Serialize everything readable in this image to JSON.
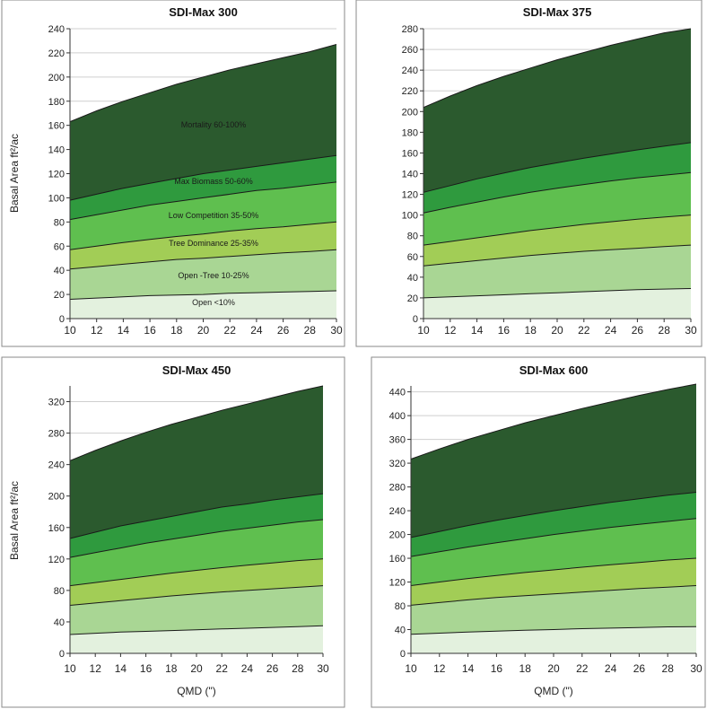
{
  "colors": {
    "bands": [
      "#e3f1de",
      "#a9d694",
      "#a2cd56",
      "#5fbf4f",
      "#2f9a3e",
      "#2b5a2e"
    ],
    "outline": "#1a1a1a",
    "frame": "#8a8a8a"
  },
  "chart_data": [
    {
      "type": "area",
      "title": "SDI-Max 300",
      "xlabel": "",
      "ylabel": "Basal Area ft²/ac",
      "x": [
        10,
        12,
        14,
        16,
        18,
        20,
        22,
        24,
        26,
        28,
        30
      ],
      "xlim": [
        10,
        30
      ],
      "ylim": [
        0,
        240
      ],
      "yticks": [
        0,
        20,
        40,
        60,
        80,
        100,
        120,
        140,
        160,
        180,
        200,
        220,
        240
      ],
      "grid": true,
      "series": [
        {
          "name": "Open <10%",
          "values": [
            16,
            17,
            18,
            19,
            19.5,
            20,
            21,
            21.5,
            22,
            22.5,
            23
          ]
        },
        {
          "name": "Open -Tree 10-25%",
          "values": [
            41,
            43,
            45,
            47,
            49,
            50,
            51.5,
            53,
            54.5,
            55.5,
            57
          ]
        },
        {
          "name": "Tree Dominance 25-35%",
          "values": [
            57,
            60,
            63,
            65.5,
            68,
            70,
            72.5,
            74.5,
            76,
            78,
            80
          ]
        },
        {
          "name": "Low Competition 35-50%",
          "values": [
            82,
            86,
            90,
            94,
            97,
            100,
            103,
            106,
            108,
            110.5,
            113
          ]
        },
        {
          "name": "Max Biomass 50-60%",
          "values": [
            98,
            103,
            108,
            112,
            116,
            120,
            123,
            126,
            129,
            132,
            135
          ]
        },
        {
          "name": "Mortality 60-100%",
          "values": [
            163,
            172,
            180,
            187,
            194,
            200,
            206,
            211,
            216,
            221,
            227
          ]
        }
      ]
    },
    {
      "type": "area",
      "title": "SDI-Max 375",
      "xlabel": "",
      "ylabel": "",
      "x": [
        10,
        12,
        14,
        16,
        18,
        20,
        22,
        24,
        26,
        28,
        30
      ],
      "xlim": [
        10,
        30
      ],
      "ylim": [
        0,
        280
      ],
      "yticks": [
        0,
        20,
        40,
        60,
        80,
        100,
        120,
        140,
        160,
        180,
        200,
        220,
        240,
        260,
        280
      ],
      "grid": true,
      "series": [
        {
          "name": "",
          "values": [
            20,
            21,
            22,
            23,
            24,
            25,
            26,
            27,
            28,
            28.5,
            29
          ]
        },
        {
          "name": "",
          "values": [
            51,
            53.5,
            56,
            58.5,
            61,
            63,
            65,
            66.5,
            68,
            69.5,
            71
          ]
        },
        {
          "name": "",
          "values": [
            71,
            74.5,
            78,
            81.5,
            85,
            88,
            91,
            93.5,
            96,
            98,
            100
          ]
        },
        {
          "name": "",
          "values": [
            102,
            107.5,
            112.5,
            117.5,
            122,
            126,
            129.5,
            133,
            136,
            138.5,
            141
          ]
        },
        {
          "name": "",
          "values": [
            122,
            128.5,
            135,
            140.5,
            146,
            150.5,
            155,
            159,
            163,
            166.5,
            170
          ]
        },
        {
          "name": "",
          "values": [
            204,
            215,
            225,
            234,
            242,
            250,
            257,
            264,
            270,
            276,
            280
          ]
        }
      ]
    },
    {
      "type": "area",
      "title": "SDI-Max 450",
      "xlabel": "QMD (\")",
      "ylabel": "Basal Area ft²/ac",
      "x": [
        10,
        12,
        14,
        16,
        18,
        20,
        22,
        24,
        26,
        28,
        30
      ],
      "xlim": [
        10,
        30
      ],
      "ylim": [
        0,
        340
      ],
      "yticks": [
        0,
        40,
        80,
        120,
        160,
        200,
        240,
        280,
        320
      ],
      "grid": true,
      "series": [
        {
          "name": "",
          "values": [
            24,
            25.5,
            27,
            28,
            29,
            30,
            31,
            32,
            33,
            34,
            35
          ]
        },
        {
          "name": "",
          "values": [
            61,
            64,
            67,
            70,
            73,
            75.5,
            78,
            80,
            82,
            84,
            86
          ]
        },
        {
          "name": "",
          "values": [
            86,
            90,
            94,
            98,
            102,
            105.5,
            109,
            112,
            115,
            118,
            120
          ]
        },
        {
          "name": "",
          "values": [
            122,
            128,
            134,
            140,
            145,
            150,
            155,
            159,
            163,
            167,
            170
          ]
        },
        {
          "name": "",
          "values": [
            146,
            154,
            162,
            168,
            174,
            180,
            186,
            190,
            195,
            199,
            203
          ]
        },
        {
          "name": "",
          "values": [
            245,
            258,
            270,
            281,
            291,
            300,
            309,
            317,
            325,
            333,
            340
          ]
        }
      ]
    },
    {
      "type": "area",
      "title": "SDI-Max 600",
      "xlabel": "QMD (\")",
      "ylabel": "",
      "x": [
        10,
        12,
        14,
        16,
        18,
        20,
        22,
        24,
        26,
        28,
        30
      ],
      "xlim": [
        10,
        30
      ],
      "ylim": [
        0,
        450
      ],
      "yticks": [
        0,
        40,
        80,
        120,
        160,
        200,
        240,
        280,
        320,
        360,
        400,
        440
      ],
      "grid": true,
      "series": [
        {
          "name": "",
          "values": [
            32,
            34,
            36,
            37.5,
            39,
            40,
            41.5,
            42.5,
            43.5,
            44.5,
            45
          ]
        },
        {
          "name": "",
          "values": [
            81,
            85.5,
            90,
            94,
            97,
            100,
            103,
            106,
            109,
            111.5,
            114
          ]
        },
        {
          "name": "",
          "values": [
            114,
            120,
            126,
            131,
            136,
            140.5,
            145,
            149,
            153,
            157,
            160
          ]
        },
        {
          "name": "",
          "values": [
            163,
            171,
            179,
            186,
            193,
            200,
            206,
            212,
            217,
            222,
            227
          ]
        },
        {
          "name": "",
          "values": [
            195,
            205,
            215,
            224,
            232,
            240,
            247,
            254,
            260,
            266,
            271
          ]
        },
        {
          "name": "",
          "values": [
            327,
            344,
            360,
            374,
            388,
            400,
            412,
            423,
            434,
            444,
            453
          ]
        }
      ]
    }
  ]
}
